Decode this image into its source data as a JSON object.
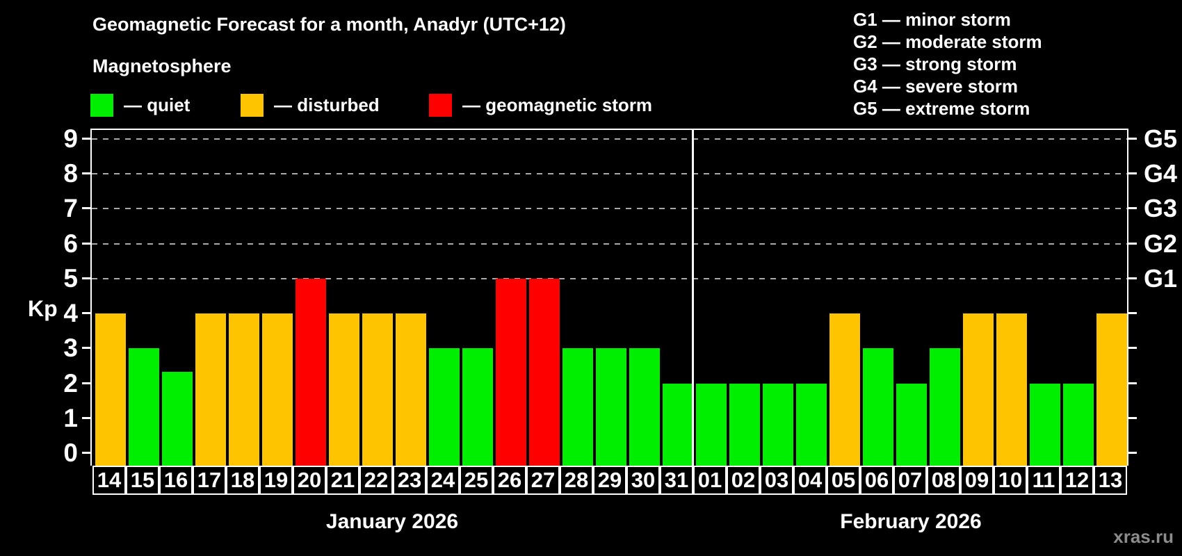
{
  "header": {
    "title": "Geomagnetic Forecast for a month, Anadyr (UTC+12)",
    "subtitle": "Magnetosphere"
  },
  "legend": {
    "items": [
      {
        "key": "quiet",
        "label": "— quiet"
      },
      {
        "key": "disturbed",
        "label": "— disturbed"
      },
      {
        "key": "storm",
        "label": "— geomagnetic storm"
      }
    ]
  },
  "storm_scale_legend": {
    "items": [
      "G1 — minor storm",
      "G2 — moderate storm",
      "G3 — strong storm",
      "G4 — severe storm",
      "G5 — extreme storm"
    ]
  },
  "colors": {
    "quiet": "#00ee00",
    "disturbed": "#ffc400",
    "storm": "#ff0000",
    "background": "#000000",
    "axis": "#ffffff",
    "gridline": "#aaaaaa",
    "watermark": "#8c8c8c"
  },
  "chart_data": {
    "type": "bar",
    "title": "Geomagnetic Forecast for a month, Anadyr (UTC+12)",
    "ylabel": "Kp",
    "ylim": [
      0,
      9
    ],
    "yticks": [
      0,
      1,
      2,
      3,
      4,
      5,
      6,
      7,
      8,
      9
    ],
    "grid_levels": [
      5,
      6,
      7,
      8,
      9
    ],
    "right_axis": [
      {
        "kp": 5,
        "label": "G1"
      },
      {
        "kp": 6,
        "label": "G2"
      },
      {
        "kp": 7,
        "label": "G3"
      },
      {
        "kp": 8,
        "label": "G4"
      },
      {
        "kp": 9,
        "label": "G5"
      }
    ],
    "categories": [
      "14",
      "15",
      "16",
      "17",
      "18",
      "19",
      "20",
      "21",
      "22",
      "23",
      "24",
      "25",
      "26",
      "27",
      "28",
      "29",
      "30",
      "31",
      "01",
      "02",
      "03",
      "04",
      "05",
      "06",
      "07",
      "08",
      "09",
      "10",
      "11",
      "12",
      "13"
    ],
    "values": [
      4,
      3,
      2.33,
      4,
      4,
      4,
      5,
      4,
      4,
      4,
      3,
      3,
      5,
      5,
      3,
      3,
      3,
      2,
      2,
      2,
      2,
      2,
      4,
      3,
      2,
      3,
      4,
      4,
      2,
      2,
      4
    ],
    "conditions": [
      "disturbed",
      "quiet",
      "quiet",
      "disturbed",
      "disturbed",
      "disturbed",
      "storm",
      "disturbed",
      "disturbed",
      "disturbed",
      "quiet",
      "quiet",
      "storm",
      "storm",
      "quiet",
      "quiet",
      "quiet",
      "quiet",
      "quiet",
      "quiet",
      "quiet",
      "quiet",
      "disturbed",
      "quiet",
      "quiet",
      "quiet",
      "disturbed",
      "disturbed",
      "quiet",
      "quiet",
      "disturbed"
    ],
    "months": [
      {
        "label": "January 2026",
        "day_count": 18
      },
      {
        "label": "February 2026",
        "day_count": 13
      }
    ]
  },
  "watermark": "xras.ru"
}
